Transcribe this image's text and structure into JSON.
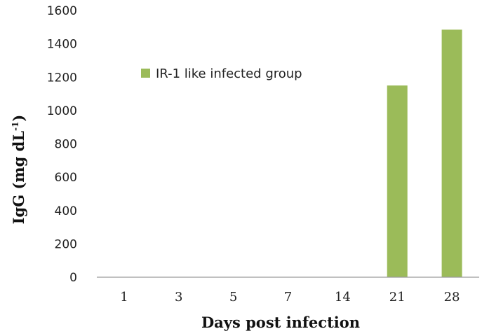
{
  "chart_data": {
    "type": "bar",
    "categories": [
      "1",
      "3",
      "5",
      "7",
      "14",
      "21",
      "28"
    ],
    "series": [
      {
        "name": "IR-1 like infected group",
        "values": [
          0,
          0,
          0,
          0,
          0,
          1150,
          1485
        ],
        "color": "#9bbb59"
      }
    ],
    "title": "",
    "xlabel": "Days post infection",
    "ylabel_main": "IgG (mg dL",
    "ylabel_sup": "-1",
    "ylabel_close": ")",
    "ylim": [
      0,
      1600
    ],
    "yticks": [
      "0",
      "200",
      "400",
      "600",
      "800",
      "1000",
      "1200",
      "1400",
      "1600"
    ],
    "grid": false,
    "legend_position": "upper-left inside plot"
  }
}
